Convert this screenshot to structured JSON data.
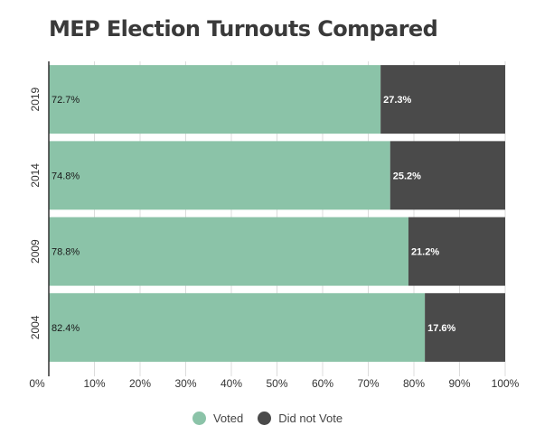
{
  "chart_data": {
    "type": "bar",
    "orientation": "horizontal",
    "stacked": true,
    "title": "MEP Election Turnouts Compared",
    "categories": [
      "2019",
      "2014",
      "2009",
      "2004"
    ],
    "series": [
      {
        "name": "Voted",
        "color": "#8bc3a8",
        "values": [
          72.7,
          74.8,
          78.8,
          82.4
        ]
      },
      {
        "name": "Did not Vote",
        "color": "#4a4a4a",
        "values": [
          27.3,
          25.2,
          21.2,
          17.6
        ]
      }
    ],
    "data_labels": [
      [
        "72.7%",
        "74.8%",
        "78.8%",
        "82.4%"
      ],
      [
        "27.3%",
        "25.2%",
        "21.2%",
        "17.6%"
      ]
    ],
    "xlim": [
      0,
      100
    ],
    "x_ticks": [
      "0%",
      "10%",
      "20%",
      "30%",
      "40%",
      "50%",
      "60%",
      "70%",
      "80%",
      "90%",
      "100%"
    ],
    "grid": true,
    "legend_position": "bottom"
  }
}
